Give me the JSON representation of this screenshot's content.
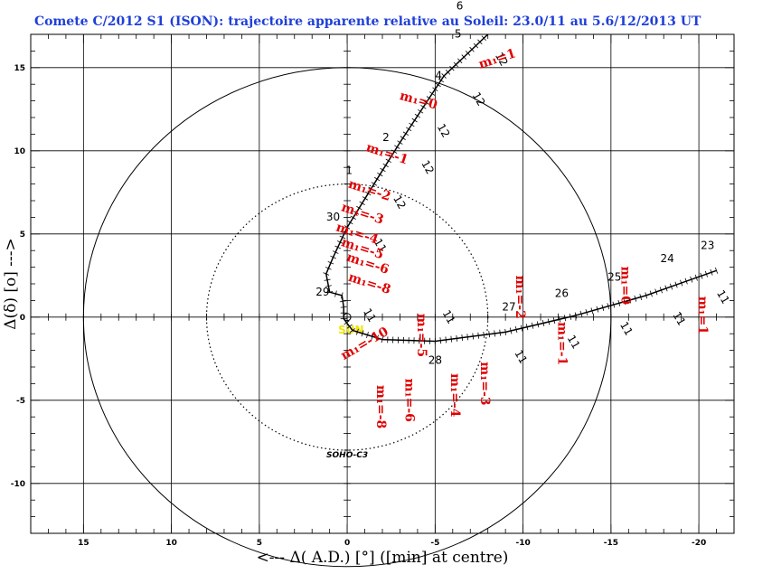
{
  "chart_data": {
    "type": "scatter",
    "title": "Comete C/2012 S1 (ISON): trajectoire apparente relative au Soleil: 23.0/11 au 5.6/12/2013  UT",
    "xlabel": "<--- Δ( A.D.) [°] ([min] at centre)",
    "ylabel": "Δ(δ) [o] --->",
    "xlim": [
      18,
      -22
    ],
    "ylim": [
      -13,
      17
    ],
    "x_ticks": [
      15,
      10,
      5,
      0,
      -5,
      -10,
      -15,
      -20
    ],
    "x_tick_labels": [
      "15",
      "10",
      "5",
      "0",
      "-5",
      "-10",
      "-15",
      "-20"
    ],
    "y_ticks": [
      15,
      10,
      5,
      0,
      -5,
      -10
    ],
    "y_tick_labels": [
      "15",
      "10",
      "5",
      "0",
      "-5",
      "-10"
    ],
    "grid": true,
    "sun": {
      "x": 0,
      "y": 0,
      "label": "SUN"
    },
    "soho_field": {
      "radius": 8,
      "label": "SOHO-C3"
    },
    "outer_circle": {
      "radius": 15
    },
    "trajectory": [
      {
        "x": -21,
        "y": 2.8
      },
      {
        "x": -17,
        "y": 1.3
      },
      {
        "x": -13,
        "y": 0.1
      },
      {
        "x": -9,
        "y": -0.9
      },
      {
        "x": -5,
        "y": -1.45
      },
      {
        "x": -2,
        "y": -1.35
      },
      {
        "x": -0.3,
        "y": -0.8
      },
      {
        "x": 0.2,
        "y": -0.1
      },
      {
        "x": 0.2,
        "y": 0.6
      },
      {
        "x": 0.3,
        "y": 1.3
      },
      {
        "x": 1.0,
        "y": 1.5
      },
      {
        "x": 1.2,
        "y": 2.6
      },
      {
        "x": 0.8,
        "y": 3.6
      },
      {
        "x": 0,
        "y": 5.4
      },
      {
        "x": -1.7,
        "y": 8.3
      },
      {
        "x": -3,
        "y": 10.5
      },
      {
        "x": -5.5,
        "y": 14.5
      },
      {
        "x": -8,
        "y": 17
      }
    ],
    "dates": [
      {
        "label": "23",
        "x": -20.5,
        "y": 4.1
      },
      {
        "label": "24",
        "x": -18.2,
        "y": 3.3
      },
      {
        "label": "25",
        "x": -15.2,
        "y": 2.2
      },
      {
        "label": "26",
        "x": -12.2,
        "y": 1.2
      },
      {
        "label": "27",
        "x": -9.2,
        "y": 0.4
      },
      {
        "label": "28",
        "x": -5.0,
        "y": -2.8
      },
      {
        "label": "29",
        "x": 1.4,
        "y": 1.3
      },
      {
        "label": "30",
        "x": 0.8,
        "y": 5.8
      },
      {
        "label": "1",
        "x": -0.1,
        "y": 8.6
      },
      {
        "label": "2",
        "x": -2.2,
        "y": 10.6
      },
      {
        "label": "4",
        "x": -5.2,
        "y": 14.3
      },
      {
        "label": "5",
        "x": -6.3,
        "y": 16.8
      },
      {
        "label": "6",
        "x": -6.4,
        "y": 18.5
      }
    ],
    "month_labels": [
      {
        "label": "11",
        "x": -21.2,
        "y": 1.1
      },
      {
        "label": "11",
        "x": -18.7,
        "y": -0.2
      },
      {
        "label": "11",
        "x": -15.7,
        "y": -0.8
      },
      {
        "label": "11",
        "x": -12.7,
        "y": -1.6
      },
      {
        "label": "11",
        "x": -9.7,
        "y": -2.5
      },
      {
        "label": "11",
        "x": -5.6,
        "y": -0.1
      },
      {
        "label": "11",
        "x": -1.1,
        "y": 0.0
      },
      {
        "label": "11",
        "x": -1.7,
        "y": 4.2
      },
      {
        "label": "12",
        "x": -2.8,
        "y": 6.8
      },
      {
        "label": "12",
        "x": -4.4,
        "y": 8.9
      },
      {
        "label": "12",
        "x": -5.3,
        "y": 11.1
      },
      {
        "label": "12",
        "x": -7.3,
        "y": 13.0
      },
      {
        "label": "12",
        "x": -8.6,
        "y": 15.4
      }
    ],
    "magnitudes": [
      {
        "label": "m₁=1",
        "x": -8.6,
        "y": 15.3,
        "rot": -18
      },
      {
        "label": "m₁=0",
        "x": -4.0,
        "y": 12.8,
        "rot": 15
      },
      {
        "label": "m₁=-1",
        "x": -2.2,
        "y": 9.6,
        "rot": 18
      },
      {
        "label": "m₁=-2",
        "x": -1.2,
        "y": 7.4,
        "rot": 18
      },
      {
        "label": "m₁=-3",
        "x": -0.8,
        "y": 6.0,
        "rot": 18
      },
      {
        "label": "m₁=-4",
        "x": -0.5,
        "y": 4.8,
        "rot": 18
      },
      {
        "label": "m₁=-5",
        "x": -0.8,
        "y": 3.9,
        "rot": 18
      },
      {
        "label": "m₁=-6",
        "x": -1.1,
        "y": 3.0,
        "rot": 18
      },
      {
        "label": "m₁=-8",
        "x": -1.2,
        "y": 1.8,
        "rot": 18
      },
      {
        "label": "m₁=-10",
        "x": -1.1,
        "y": -1.8,
        "rot": -30
      },
      {
        "label": "m₁=-8",
        "x": -1.7,
        "y": -5.4,
        "rot": 90
      },
      {
        "label": "m₁=-6",
        "x": -3.3,
        "y": -5.0,
        "rot": 90
      },
      {
        "label": "m₁=-4",
        "x": -5.9,
        "y": -4.7,
        "rot": 90
      },
      {
        "label": "m₁=-3",
        "x": -7.6,
        "y": -4.0,
        "rot": 90
      },
      {
        "label": "m₁=-5",
        "x": -4.0,
        "y": -1.1,
        "rot": 90
      },
      {
        "label": "m₁=-2",
        "x": -9.6,
        "y": 1.2,
        "rot": 90
      },
      {
        "label": "m₁=-1",
        "x": -12.0,
        "y": -1.6,
        "rot": 90
      },
      {
        "label": "m₁=0",
        "x": -15.6,
        "y": 1.9,
        "rot": 90
      },
      {
        "label": "m₁=1",
        "x": -20.0,
        "y": 0.1,
        "rot": 90
      }
    ]
  }
}
